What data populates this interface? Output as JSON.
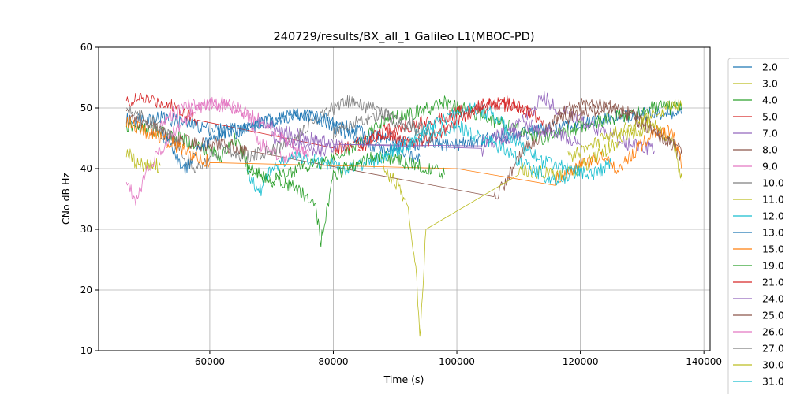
{
  "chart_data": {
    "type": "line",
    "title": "240729/results/BX_all_1 Galileo L1(MBOC-PD)",
    "xlabel": "Time (s)",
    "ylabel": "CNo dB Hz",
    "xlim": [
      42000,
      141000
    ],
    "ylim": [
      10,
      60
    ],
    "xticks": [
      60000,
      80000,
      100000,
      120000,
      140000
    ],
    "xtick_labels": [
      "60000",
      "80000",
      "100000",
      "120000",
      "140000"
    ],
    "yticks": [
      10,
      20,
      30,
      40,
      50,
      60
    ],
    "ytick_labels": [
      "10",
      "20",
      "30",
      "40",
      "50",
      "60"
    ],
    "grid": true,
    "legend_position": "right, outside plot (clipped)",
    "series": [
      {
        "name": "2.0",
        "color": "#1f77b4",
        "values": [
          [
            46500,
            48
          ],
          [
            52000,
            48.5
          ],
          [
            58000,
            47
          ],
          [
            64000,
            46
          ],
          [
            70000,
            48
          ],
          [
            76000,
            49
          ],
          [
            82000,
            47
          ],
          [
            88000,
            45
          ],
          [
            94000,
            44
          ],
          [
            100000,
            44
          ],
          [
            106000,
            45
          ],
          [
            112000,
            46
          ],
          [
            118000,
            47
          ],
          [
            124000,
            48
          ],
          [
            130000,
            49
          ],
          [
            136500,
            49
          ]
        ]
      },
      {
        "name": "3.0",
        "color": "#bcbd22",
        "values": [
          [
            46500,
            43
          ],
          [
            48000,
            41
          ],
          [
            50000,
            40.5
          ],
          [
            52000,
            40.5
          ]
        ]
      },
      {
        "name": "4.0",
        "color": "#2ca02c",
        "values": [
          [
            46500,
            47
          ],
          [
            52000,
            46
          ],
          [
            58000,
            44
          ],
          [
            62000,
            42
          ],
          [
            64000,
            45
          ],
          [
            66500,
            40
          ],
          [
            70000,
            38
          ],
          [
            74000,
            40
          ],
          [
            78000,
            41
          ],
          [
            80000,
            42
          ],
          [
            84000,
            44
          ],
          [
            88000,
            48
          ],
          [
            92000,
            49
          ],
          [
            96000,
            50
          ],
          [
            98000,
            51
          ],
          [
            100000,
            50
          ],
          [
            104000,
            49
          ],
          [
            108000,
            47
          ],
          [
            114000,
            45
          ],
          [
            120000,
            47
          ],
          [
            124000,
            48
          ],
          [
            128000,
            49
          ],
          [
            132000,
            50
          ],
          [
            136500,
            50
          ]
        ]
      },
      {
        "name": "5.0",
        "color": "#d62728",
        "values": [
          [
            46500,
            51
          ],
          [
            49000,
            51.5
          ],
          [
            52000,
            51
          ],
          [
            55000,
            50
          ],
          [
            58000,
            48
          ],
          [
            80000,
            43
          ],
          [
            84000,
            44
          ],
          [
            88000,
            46
          ],
          [
            92000,
            47
          ],
          [
            96000,
            48
          ],
          [
            102000,
            50
          ],
          [
            106000,
            51
          ],
          [
            110000,
            50
          ],
          [
            114000,
            48
          ]
        ]
      },
      {
        "name": "7.0",
        "color": "#9467bd",
        "values": [
          [
            68000,
            48
          ],
          [
            72000,
            46
          ],
          [
            76000,
            45
          ],
          [
            80000,
            44
          ],
          [
            104000,
            44
          ],
          [
            108000,
            46
          ],
          [
            112000,
            49
          ],
          [
            114000,
            52
          ],
          [
            116000,
            50
          ],
          [
            120000,
            48
          ],
          [
            124000,
            46
          ],
          [
            128000,
            44
          ],
          [
            132000,
            43
          ]
        ]
      },
      {
        "name": "8.0",
        "color": "#8c564b",
        "values": [
          [
            46500,
            49
          ],
          [
            50000,
            47
          ],
          [
            54000,
            45
          ],
          [
            58000,
            44
          ],
          [
            62000,
            44
          ],
          [
            66000,
            43
          ],
          [
            106000,
            35
          ],
          [
            108000,
            38
          ],
          [
            110000,
            42
          ],
          [
            114000,
            46
          ],
          [
            118000,
            50
          ],
          [
            122000,
            51
          ],
          [
            126000,
            50
          ],
          [
            130000,
            48
          ],
          [
            134000,
            45
          ],
          [
            136500,
            42
          ]
        ]
      },
      {
        "name": "9.0",
        "color": "#e377c2",
        "values": [
          [
            46500,
            38
          ],
          [
            48000,
            35
          ],
          [
            50000,
            40
          ],
          [
            54000,
            46
          ],
          [
            58000,
            50
          ],
          [
            62000,
            51
          ],
          [
            66000,
            49
          ],
          [
            68000,
            44
          ],
          [
            72000,
            42
          ],
          [
            76000,
            43
          ]
        ]
      },
      {
        "name": "10.0",
        "color": "#7f7f7f",
        "values": [
          [
            46500,
            50
          ],
          [
            50000,
            48
          ],
          [
            54000,
            45
          ],
          [
            56000,
            42
          ],
          [
            58000,
            40
          ],
          [
            62000,
            43
          ],
          [
            66000,
            42
          ],
          [
            70000,
            43
          ],
          [
            74000,
            45
          ],
          [
            78000,
            49
          ],
          [
            82000,
            51
          ],
          [
            86000,
            50
          ],
          [
            90000,
            48
          ],
          [
            94000,
            47
          ],
          [
            96000,
            46
          ]
        ]
      },
      {
        "name": "11.0",
        "color": "#bcbd22",
        "values": [
          [
            88000,
            40
          ],
          [
            90000,
            38
          ],
          [
            92000,
            34
          ],
          [
            93500,
            22
          ],
          [
            94000,
            12
          ],
          [
            95000,
            30
          ],
          [
            110000,
            40
          ],
          [
            116000,
            39
          ],
          [
            120000,
            40
          ],
          [
            124000,
            43
          ],
          [
            128000,
            46
          ],
          [
            132000,
            47
          ],
          [
            135000,
            44
          ],
          [
            136500,
            38
          ]
        ]
      },
      {
        "name": "12.0",
        "color": "#17becf",
        "values": [
          [
            66000,
            40
          ],
          [
            68000,
            36
          ],
          [
            70000,
            40
          ],
          [
            74000,
            42
          ],
          [
            78000,
            41
          ],
          [
            82000,
            40
          ],
          [
            86000,
            41
          ],
          [
            90000,
            43
          ],
          [
            94000,
            46
          ],
          [
            98000,
            48
          ],
          [
            102000,
            50
          ],
          [
            106000,
            49
          ],
          [
            110000,
            44
          ],
          [
            114000,
            41
          ],
          [
            118000,
            40
          ],
          [
            122000,
            39
          ],
          [
            125000,
            41
          ]
        ]
      },
      {
        "name": "13.0",
        "color": "#1f77b4",
        "values": [
          [
            52000,
            46
          ],
          [
            56000,
            40
          ],
          [
            58000,
            43
          ],
          [
            62000,
            46
          ],
          [
            66000,
            47
          ],
          [
            70000,
            48
          ],
          [
            74000,
            49
          ],
          [
            78000,
            48
          ],
          [
            82000,
            46
          ],
          [
            86000,
            44
          ],
          [
            90000,
            43
          ],
          [
            94000,
            42
          ]
        ]
      },
      {
        "name": "15.0",
        "color": "#ff7f0e",
        "values": [
          [
            46500,
            48
          ],
          [
            50000,
            46
          ],
          [
            54000,
            44
          ],
          [
            58000,
            42
          ],
          [
            60000,
            41
          ],
          [
            100000,
            40
          ],
          [
            116000,
            38
          ],
          [
            120000,
            41
          ],
          [
            124000,
            42
          ],
          [
            126000,
            40
          ],
          [
            128000,
            42
          ],
          [
            132000,
            46
          ],
          [
            135000,
            46
          ],
          [
            136500,
            40
          ]
        ]
      },
      {
        "name": "19.0",
        "color": "#2ca02c",
        "values": [
          [
            66000,
            40
          ],
          [
            70000,
            38
          ],
          [
            74000,
            37
          ],
          [
            77000,
            34
          ],
          [
            78000,
            28
          ],
          [
            80000,
            39
          ],
          [
            84000,
            41
          ],
          [
            88000,
            42
          ],
          [
            92000,
            41
          ],
          [
            96000,
            40
          ],
          [
            98000,
            39
          ]
        ]
      },
      {
        "name": "21.0",
        "color": "#d62728",
        "values": [
          [
            84000,
            42
          ],
          [
            86000,
            45
          ],
          [
            88000,
            46
          ],
          [
            92000,
            44
          ],
          [
            96000,
            45
          ],
          [
            100000,
            48
          ],
          [
            104000,
            50
          ],
          [
            108000,
            51
          ],
          [
            112000,
            49
          ]
        ]
      },
      {
        "name": "24.0",
        "color": "#9467bd",
        "values": [
          [
            70000,
            45
          ],
          [
            74000,
            44
          ],
          [
            78000,
            43
          ],
          [
            82000,
            44
          ],
          [
            104000,
            43
          ],
          [
            108000,
            45
          ],
          [
            112000,
            47
          ],
          [
            116000,
            46
          ],
          [
            120000,
            44
          ]
        ]
      },
      {
        "name": "25.0",
        "color": "#8c564b",
        "values": [
          [
            116000,
            48
          ],
          [
            120000,
            49
          ],
          [
            124000,
            50
          ],
          [
            128000,
            49
          ],
          [
            132000,
            46
          ],
          [
            136500,
            43
          ]
        ]
      },
      {
        "name": "26.0",
        "color": "#e377c2",
        "values": [
          [
            52000,
            48
          ],
          [
            56000,
            50
          ],
          [
            60000,
            51
          ],
          [
            64000,
            50
          ],
          [
            68000,
            48
          ],
          [
            72000,
            45
          ],
          [
            76000,
            42
          ]
        ]
      },
      {
        "name": "27.0",
        "color": "#7f7f7f",
        "values": [
          [
            80000,
            46
          ],
          [
            84000,
            48
          ],
          [
            88000,
            49
          ],
          [
            92000,
            47
          ],
          [
            96000,
            45
          ]
        ]
      },
      {
        "name": "30.0",
        "color": "#bcbd22",
        "values": [
          [
            118000,
            42
          ],
          [
            122000,
            44
          ],
          [
            126000,
            46
          ],
          [
            130000,
            48
          ],
          [
            134000,
            50
          ],
          [
            136500,
            51
          ]
        ]
      },
      {
        "name": "31.0",
        "color": "#17becf",
        "values": [
          [
            88000,
            42
          ],
          [
            92000,
            44
          ],
          [
            96000,
            46
          ],
          [
            100000,
            47
          ],
          [
            104000,
            45
          ],
          [
            108000,
            43
          ],
          [
            112000,
            40
          ],
          [
            116000,
            38
          ],
          [
            120000,
            40
          ]
        ]
      }
    ]
  }
}
